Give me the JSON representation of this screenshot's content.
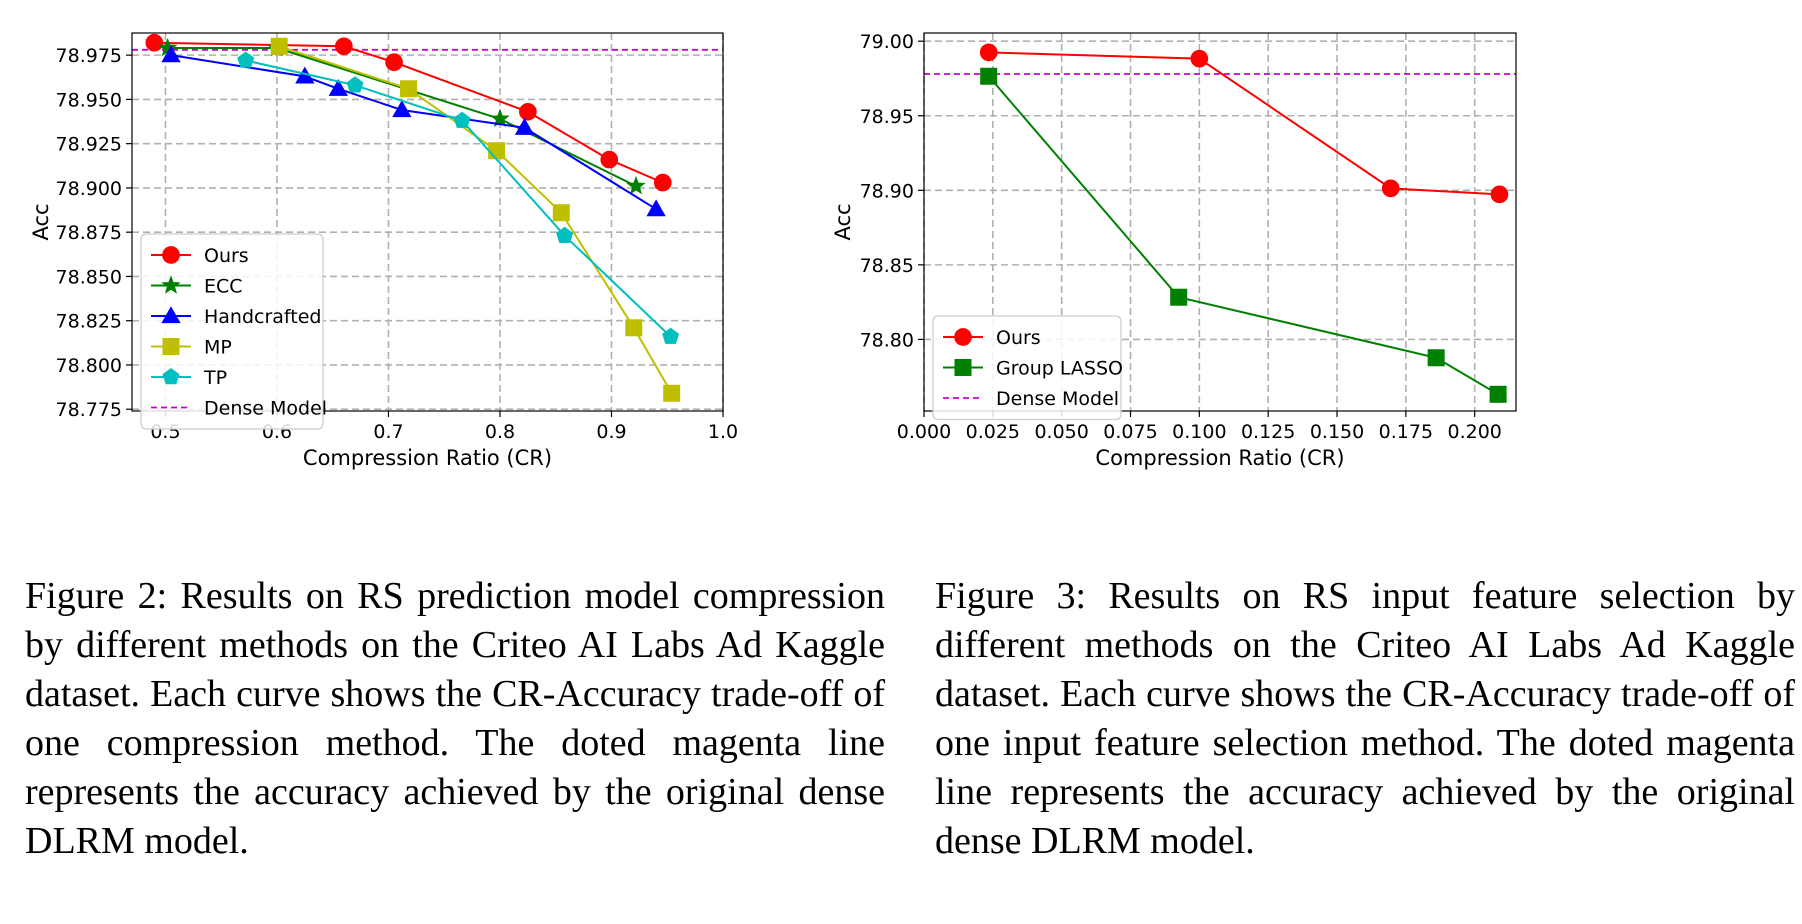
{
  "chart_data": [
    {
      "type": "line",
      "xlabel": "Compression Ratio (CR)",
      "ylabel": "Acc",
      "xlim": [
        0.47,
        1.0
      ],
      "ylim": [
        78.774,
        78.9875
      ],
      "xticks": [
        0.5,
        0.6,
        0.7,
        0.8,
        0.9,
        1.0
      ],
      "xtick_labels": [
        "0.5",
        "0.6",
        "0.7",
        "0.8",
        "0.9",
        "1.0"
      ],
      "yticks": [
        78.775,
        78.8,
        78.825,
        78.85,
        78.875,
        78.9,
        78.925,
        78.95,
        78.975
      ],
      "ytick_labels": [
        "78.775",
        "78.800",
        "78.825",
        "78.850",
        "78.875",
        "78.900",
        "78.925",
        "78.950",
        "78.975"
      ],
      "grid": true,
      "legend_position": "lower-left",
      "reference_line": {
        "name": "Dense Model",
        "y": 78.978,
        "color": "#cc00cc",
        "style": "dashed"
      },
      "series": [
        {
          "name": "Ours",
          "color": "#ff0000",
          "marker": "circle",
          "x": [
            0.49,
            0.66,
            0.705,
            0.825,
            0.898,
            0.946
          ],
          "y": [
            78.982,
            78.98,
            78.971,
            78.943,
            78.916,
            78.903
          ]
        },
        {
          "name": "ECC",
          "color": "#008000",
          "marker": "star",
          "x": [
            0.502,
            0.6,
            0.8,
            0.922
          ],
          "y": [
            78.979,
            78.979,
            78.939,
            78.901
          ]
        },
        {
          "name": "Handcrafted",
          "color": "#0000ff",
          "marker": "triangle",
          "x": [
            0.505,
            0.625,
            0.655,
            0.712,
            0.822,
            0.94
          ],
          "y": [
            78.975,
            78.963,
            78.956,
            78.944,
            78.934,
            78.888
          ]
        },
        {
          "name": "MP",
          "color": "#bfbf00",
          "marker": "square",
          "x": [
            0.602,
            0.718,
            0.797,
            0.855,
            0.92,
            0.954
          ],
          "y": [
            78.98,
            78.956,
            78.921,
            78.886,
            78.821,
            78.784
          ]
        },
        {
          "name": "TP",
          "color": "#00bfbf",
          "marker": "pentagon",
          "x": [
            0.572,
            0.67,
            0.766,
            0.858,
            0.953
          ],
          "y": [
            78.972,
            78.958,
            78.938,
            78.873,
            78.816
          ]
        }
      ]
    },
    {
      "type": "line",
      "xlabel": "Compression Ratio (CR)",
      "ylabel": "Acc",
      "xlim": [
        0.0,
        0.215
      ],
      "ylim": [
        78.752,
        79.0055
      ],
      "xticks": [
        0.0,
        0.025,
        0.05,
        0.075,
        0.1,
        0.125,
        0.15,
        0.175,
        0.2
      ],
      "xtick_labels": [
        "0.000",
        "0.025",
        "0.050",
        "0.075",
        "0.100",
        "0.125",
        "0.150",
        "0.175",
        "0.200"
      ],
      "yticks": [
        78.8,
        78.85,
        78.9,
        78.95,
        79.0
      ],
      "ytick_labels": [
        "78.80",
        "78.85",
        "78.90",
        "78.95",
        "79.00"
      ],
      "grid": true,
      "legend_position": "lower-left",
      "reference_line": {
        "name": "Dense Model",
        "y": 78.978,
        "color": "#cc00cc",
        "style": "dashed"
      },
      "series": [
        {
          "name": "Ours",
          "color": "#ff0000",
          "marker": "circle",
          "x": [
            0.0235,
            0.1,
            0.1695,
            0.209
          ],
          "y": [
            78.9925,
            78.9883,
            78.9013,
            78.8973
          ]
        },
        {
          "name": "Group LASSO",
          "color": "#008000",
          "marker": "square",
          "x": [
            0.0235,
            0.0925,
            0.186,
            0.2085
          ],
          "y": [
            78.9765,
            78.8283,
            78.7877,
            78.7632
          ]
        }
      ]
    }
  ],
  "captions": {
    "fig2": "Figure 2: Results on RS prediction model compression by different methods on the Criteo AI Labs Ad Kaggle dataset.  Each curve shows the CR-Accuracy trade-off of one compression method. The doted magenta line represents the accuracy achieved by the original dense DLRM model.",
    "fig3": "Figure 3:  Results on RS input feature selection by different methods on the Criteo AI Labs Ad Kaggle dataset. Each curve shows the CR-Accuracy trade-off of one input feature selection method. The doted magenta line represents the accuracy achieved by the original dense DLRM model."
  }
}
